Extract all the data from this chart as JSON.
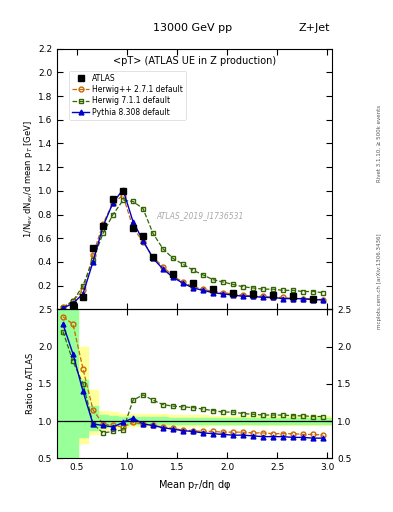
{
  "title_center": "13000 GeV pp",
  "title_right": "Z+Jet",
  "panel_title": "<pT> (ATLAS UE in Z production)",
  "watermark": "ATLAS_2019_I1736531",
  "ylabel_main": "1/N$_{ev}$ dN$_{ev}$/d mean p$_{T}$ [GeV]",
  "ylabel_ratio": "Ratio to ATLAS",
  "xlabel": "Mean p$_{T}$/dη dφ",
  "right_label_1": "Rivet 3.1.10, ≥ 500k events",
  "right_label_2": "mcplots.cern.ch [arXiv:1306.3436]",
  "ylim_main": [
    0,
    2.2
  ],
  "ylim_ratio": [
    0.5,
    2.5
  ],
  "xlim": [
    0.3,
    3.05
  ],
  "atlas_x": [
    0.46,
    0.56,
    0.66,
    0.76,
    0.86,
    0.96,
    1.06,
    1.16,
    1.26,
    1.46,
    1.66,
    1.86,
    2.06,
    2.26,
    2.46,
    2.66,
    2.86
  ],
  "atlas_y": [
    0.04,
    0.1,
    0.52,
    0.7,
    0.93,
    1.0,
    0.69,
    0.62,
    0.44,
    0.3,
    0.22,
    0.17,
    0.14,
    0.13,
    0.12,
    0.11,
    0.09
  ],
  "herwig_pp_x": [
    0.36,
    0.46,
    0.56,
    0.66,
    0.76,
    0.86,
    0.96,
    1.06,
    1.16,
    1.26,
    1.36,
    1.46,
    1.56,
    1.66,
    1.76,
    1.86,
    1.96,
    2.06,
    2.16,
    2.26,
    2.36,
    2.46,
    2.56,
    2.66,
    2.76,
    2.86,
    2.96
  ],
  "herwig_pp_y": [
    0.02,
    0.07,
    0.16,
    0.46,
    0.72,
    0.9,
    0.96,
    0.69,
    0.57,
    0.44,
    0.36,
    0.28,
    0.23,
    0.19,
    0.17,
    0.15,
    0.14,
    0.13,
    0.12,
    0.11,
    0.11,
    0.1,
    0.1,
    0.09,
    0.09,
    0.09,
    0.08
  ],
  "herwig7_x": [
    0.36,
    0.46,
    0.56,
    0.66,
    0.76,
    0.86,
    0.96,
    1.06,
    1.16,
    1.26,
    1.36,
    1.46,
    1.56,
    1.66,
    1.76,
    1.86,
    1.96,
    2.06,
    2.16,
    2.26,
    2.36,
    2.46,
    2.56,
    2.66,
    2.76,
    2.86,
    2.96
  ],
  "herwig7_y": [
    0.01,
    0.07,
    0.2,
    0.42,
    0.64,
    0.8,
    0.92,
    0.91,
    0.85,
    0.64,
    0.51,
    0.43,
    0.38,
    0.33,
    0.29,
    0.25,
    0.23,
    0.21,
    0.19,
    0.18,
    0.17,
    0.17,
    0.16,
    0.16,
    0.15,
    0.15,
    0.14
  ],
  "pythia_x": [
    0.36,
    0.46,
    0.56,
    0.66,
    0.76,
    0.86,
    0.96,
    1.06,
    1.16,
    1.26,
    1.36,
    1.46,
    1.56,
    1.66,
    1.76,
    1.86,
    1.96,
    2.06,
    2.16,
    2.26,
    2.36,
    2.46,
    2.56,
    2.66,
    2.76,
    2.86,
    2.96
  ],
  "pythia_y": [
    0.01,
    0.05,
    0.13,
    0.4,
    0.7,
    0.9,
    1.01,
    0.74,
    0.58,
    0.43,
    0.34,
    0.27,
    0.22,
    0.18,
    0.16,
    0.14,
    0.13,
    0.12,
    0.11,
    0.11,
    0.1,
    0.1,
    0.09,
    0.09,
    0.09,
    0.08,
    0.08
  ],
  "ratio_herwig_pp_x": [
    0.36,
    0.46,
    0.56,
    0.66,
    0.76,
    0.86,
    0.96,
    1.06,
    1.16,
    1.26,
    1.36,
    1.46,
    1.56,
    1.66,
    1.76,
    1.86,
    1.96,
    2.06,
    2.16,
    2.26,
    2.36,
    2.46,
    2.56,
    2.66,
    2.76,
    2.86,
    2.96
  ],
  "ratio_herwig_pp": [
    2.4,
    2.3,
    1.7,
    1.15,
    0.96,
    0.94,
    0.92,
    0.98,
    0.96,
    0.94,
    0.92,
    0.9,
    0.88,
    0.87,
    0.86,
    0.86,
    0.85,
    0.85,
    0.85,
    0.84,
    0.84,
    0.83,
    0.83,
    0.83,
    0.82,
    0.82,
    0.81
  ],
  "ratio_herwig7_x": [
    0.36,
    0.46,
    0.56,
    0.66,
    0.76,
    0.86,
    0.96,
    1.06,
    1.16,
    1.26,
    1.36,
    1.46,
    1.56,
    1.66,
    1.76,
    1.86,
    1.96,
    2.06,
    2.16,
    2.26,
    2.36,
    2.46,
    2.56,
    2.66,
    2.76,
    2.86,
    2.96
  ],
  "ratio_herwig7": [
    2.2,
    1.8,
    1.5,
    0.96,
    0.84,
    0.86,
    0.88,
    1.28,
    1.35,
    1.28,
    1.22,
    1.2,
    1.19,
    1.18,
    1.16,
    1.14,
    1.12,
    1.12,
    1.1,
    1.09,
    1.08,
    1.08,
    1.08,
    1.07,
    1.07,
    1.06,
    1.06
  ],
  "ratio_pythia_x": [
    0.36,
    0.46,
    0.56,
    0.66,
    0.76,
    0.86,
    0.96,
    1.06,
    1.16,
    1.26,
    1.36,
    1.46,
    1.56,
    1.66,
    1.76,
    1.86,
    1.96,
    2.06,
    2.16,
    2.26,
    2.36,
    2.46,
    2.56,
    2.66,
    2.76,
    2.86,
    2.96
  ],
  "ratio_pythia": [
    2.3,
    1.9,
    1.4,
    0.96,
    0.94,
    0.92,
    0.98,
    1.04,
    0.96,
    0.94,
    0.91,
    0.89,
    0.87,
    0.86,
    0.84,
    0.83,
    0.82,
    0.81,
    0.81,
    0.8,
    0.79,
    0.79,
    0.79,
    0.78,
    0.78,
    0.77,
    0.77
  ],
  "band_x": [
    0.3,
    0.41,
    0.51,
    0.61,
    0.71,
    0.81,
    0.91,
    1.01,
    1.11,
    1.21,
    1.41,
    1.61,
    1.81,
    2.01,
    2.21,
    2.41,
    2.61,
    2.81,
    3.05
  ],
  "band_yellow_low": [
    0.5,
    0.5,
    0.7,
    0.82,
    0.88,
    0.9,
    0.92,
    0.93,
    0.93,
    0.93,
    0.93,
    0.93,
    0.94,
    0.94,
    0.94,
    0.94,
    0.94,
    0.94,
    0.94
  ],
  "band_yellow_high": [
    2.5,
    2.5,
    2.0,
    1.42,
    1.14,
    1.12,
    1.1,
    1.09,
    1.09,
    1.09,
    1.08,
    1.08,
    1.07,
    1.07,
    1.07,
    1.07,
    1.07,
    1.07,
    1.07
  ],
  "band_green_low": [
    0.5,
    0.5,
    0.78,
    0.88,
    0.92,
    0.94,
    0.95,
    0.96,
    0.96,
    0.96,
    0.96,
    0.96,
    0.96,
    0.96,
    0.96,
    0.96,
    0.96,
    0.96,
    0.96
  ],
  "band_green_high": [
    2.5,
    2.5,
    1.55,
    1.2,
    1.08,
    1.07,
    1.06,
    1.05,
    1.05,
    1.05,
    1.04,
    1.04,
    1.04,
    1.04,
    1.04,
    1.04,
    1.04,
    1.04,
    1.04
  ],
  "color_atlas": "#000000",
  "color_herwig_pp": "#cc6600",
  "color_herwig7": "#336600",
  "color_pythia": "#0000cc",
  "color_band_yellow": "#ffff99",
  "color_band_green": "#99ff99",
  "yticks_main": [
    0,
    0.2,
    0.4,
    0.6,
    0.8,
    1.0,
    1.2,
    1.4,
    1.6,
    1.8,
    2.0,
    2.2
  ],
  "yticks_ratio": [
    0.5,
    1.0,
    1.5,
    2.0,
    2.5
  ],
  "xticks": [
    0.5,
    1.0,
    1.5,
    2.0,
    2.5,
    3.0
  ]
}
